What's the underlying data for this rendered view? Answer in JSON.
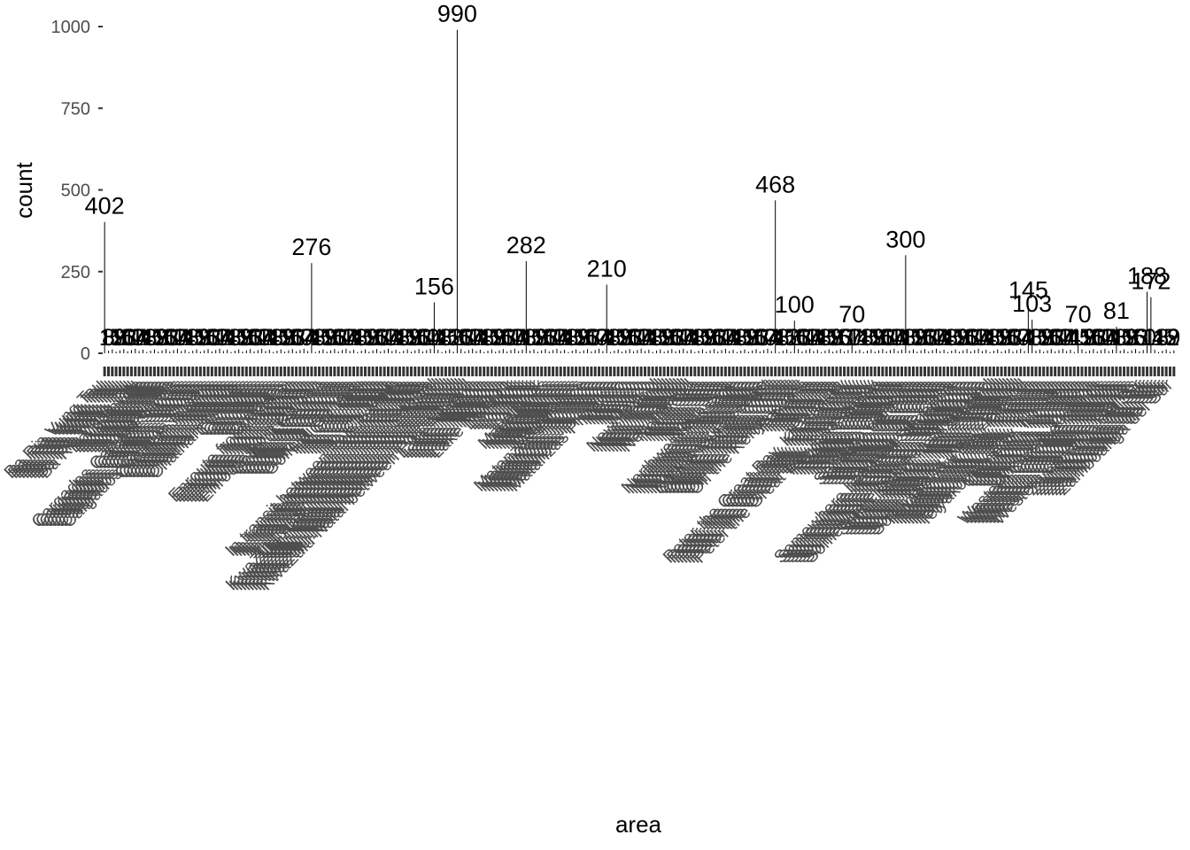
{
  "chart_data": {
    "type": "bar",
    "xlabel": "area",
    "ylabel": "count",
    "ylim": [
      0,
      1000
    ],
    "yticks": [
      0,
      250,
      500,
      750,
      1000
    ],
    "grid": false,
    "legend": "none",
    "bar_color": "#000000",
    "text_color": "#4d4d4d",
    "category_count": 280,
    "categories": [
      "Ba Ria Vung Tau",
      "Bougainville",
      "Cargados Carajos Shoals",
      "Chatham Islands",
      "Cyclades",
      "Enroute from Durban",
      "Golfo di Genova",
      "Ho Chi Minh",
      "In transit between Port Kembla",
      "KwaZulu-Natal between Port Edward",
      "Lake Nipigon",
      "Lombok",
      "Magallanes",
      "Matanzas Province",
      "Mexico",
      "New Ireland",
      "North Sea",
      "Northwest Passage",
      "Off the Kenya coast",
      "Panama",
      "Peter the Great Bay, Khasansky",
      "Reggio Calabria",
      "Santiago de Cuba",
      "Somewhere between Singapore",
      "South Island, New Zealand",
      "Telyakovsky Bay, Khasan",
      "Unknown, location",
      "Western Caroline Islands",
      "Zamboanga del Sur"
    ],
    "labeled_bars": [
      {
        "index": 0,
        "value": 402,
        "label": "402"
      },
      {
        "index": 54,
        "value": 276,
        "label": "276"
      },
      {
        "index": 86,
        "value": 156,
        "label": "156"
      },
      {
        "index": 92,
        "value": 990,
        "label": "990"
      },
      {
        "index": 110,
        "value": 282,
        "label": "282"
      },
      {
        "index": 131,
        "value": 210,
        "label": "210"
      },
      {
        "index": 175,
        "value": 468,
        "label": "468"
      },
      {
        "index": 180,
        "value": 100,
        "label": "100"
      },
      {
        "index": 195,
        "value": 70,
        "label": "70"
      },
      {
        "index": 209,
        "value": 300,
        "label": "300"
      },
      {
        "index": 241,
        "value": 145,
        "label": "145"
      },
      {
        "index": 242,
        "value": 103,
        "label": "103"
      },
      {
        "index": 254,
        "value": 70,
        "label": "70"
      },
      {
        "index": 264,
        "value": 81,
        "label": "81"
      },
      {
        "index": 272,
        "value": 188,
        "label": "188"
      },
      {
        "index": 273,
        "value": 172,
        "label": "172"
      }
    ]
  }
}
